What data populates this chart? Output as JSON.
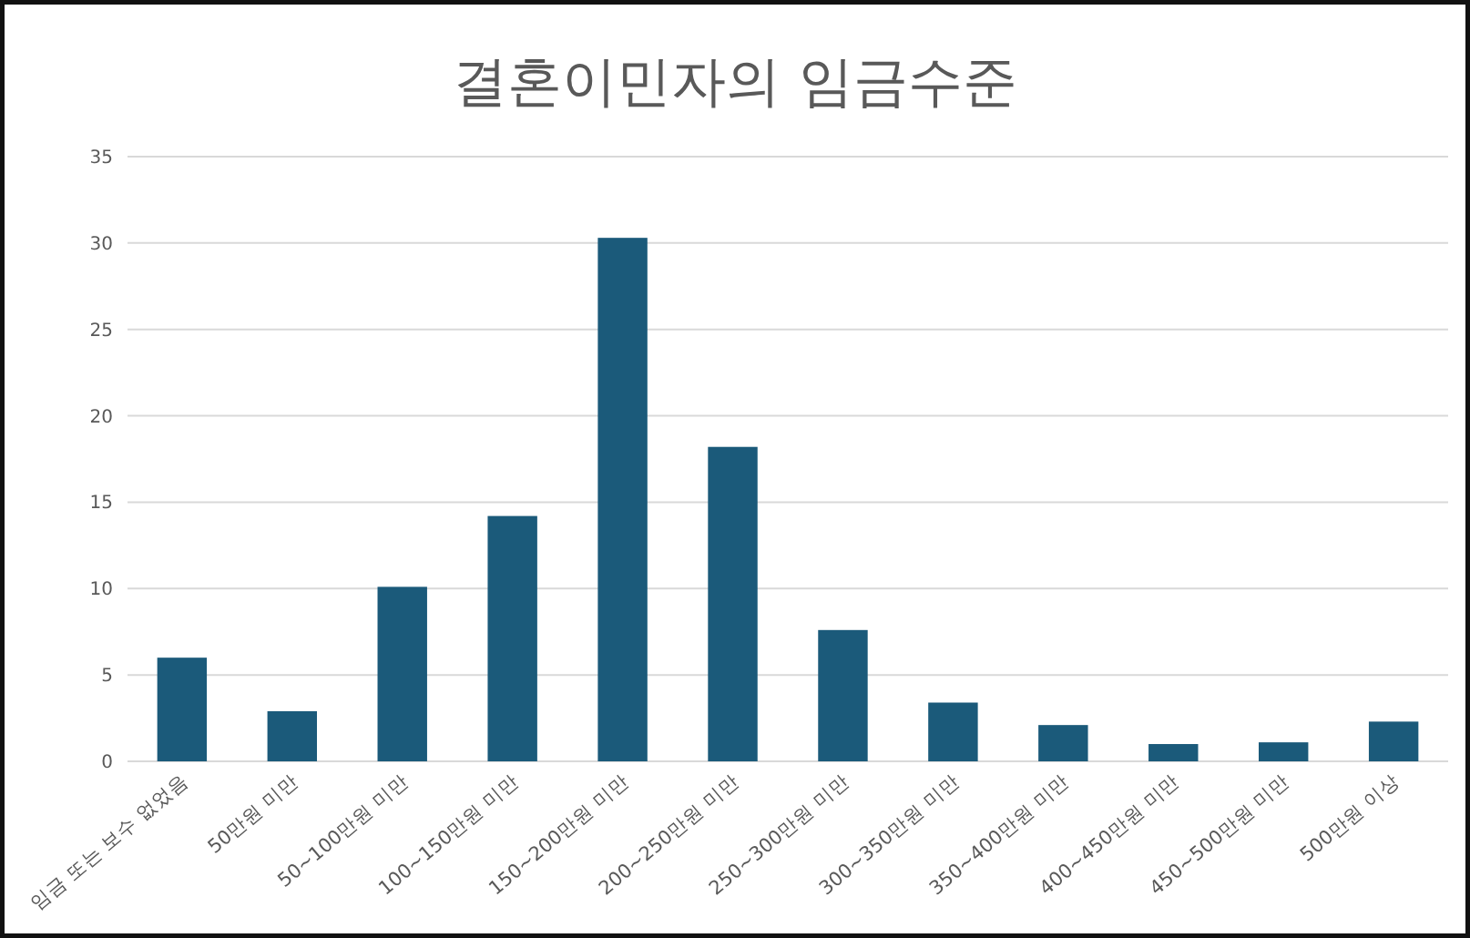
{
  "chart_data": {
    "type": "bar",
    "title": "결혼이민자의 임금수준",
    "categories": [
      "임금 또는 보수 없었음",
      "50만원 미만",
      "50~100만원 미만",
      "100~150만원 미만",
      "150~200만원 미만",
      "200~250만원 미만",
      "250~300만원 미만",
      "300~350만원 미만",
      "350~400만원 미만",
      "400~450만원 미만",
      "450~500만원 미만",
      "500만원 이상"
    ],
    "values": [
      6.0,
      2.9,
      10.1,
      14.2,
      30.3,
      18.2,
      7.6,
      3.4,
      2.1,
      1.0,
      1.1,
      2.3
    ],
    "color": "#1b5a7a",
    "ylim": [
      0,
      35
    ],
    "yticks": [
      0,
      5,
      10,
      15,
      20,
      25,
      30,
      35
    ],
    "grid": "y"
  }
}
